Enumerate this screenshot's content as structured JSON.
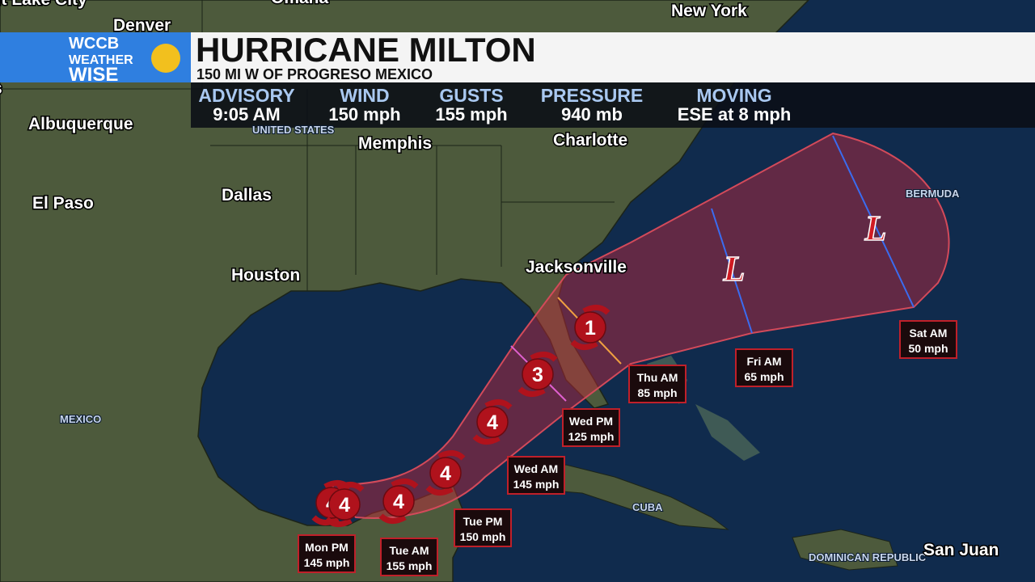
{
  "header": {
    "logo": [
      "WCCB",
      "WEATHER",
      "WISE"
    ],
    "title": "HURRICANE MILTON",
    "subtitle": "150 MI W OF PROGRESO MEXICO"
  },
  "stats": [
    {
      "label": "ADVISORY",
      "value": "9:05 AM"
    },
    {
      "label": "WIND",
      "value": "150 mph"
    },
    {
      "label": "GUSTS",
      "value": "155 mph"
    },
    {
      "label": "PRESSURE",
      "value": "940 mb"
    },
    {
      "label": "MOVING",
      "value": "ESE at 8 mph"
    }
  ],
  "places": [
    "Salt Lake City",
    "Omaha",
    "Denver",
    "New York",
    "Las Vegas",
    "Albuquerque",
    "UNITED STATES",
    "Memphis",
    "Charlotte",
    "El Paso",
    "Dallas",
    "Houston",
    "Jacksonville",
    "BERMUDA",
    "MEXICO",
    "CUBA",
    "DOMINICAN REPUBLIC",
    "San Juan"
  ],
  "track": [
    {
      "category": "4"
    },
    {
      "category": "4"
    },
    {
      "category": "4"
    },
    {
      "category": "4"
    },
    {
      "category": "4"
    },
    {
      "category": "3"
    },
    {
      "category": "1"
    },
    {
      "category": "L"
    },
    {
      "category": "L"
    }
  ],
  "forecast": [
    {
      "time": "Mon PM",
      "wind": "145 mph"
    },
    {
      "time": "Tue AM",
      "wind": "155 mph"
    },
    {
      "time": "Tue PM",
      "wind": "150 mph"
    },
    {
      "time": "Wed AM",
      "wind": "145 mph"
    },
    {
      "time": "Wed PM",
      "wind": "125 mph"
    },
    {
      "time": "Thu AM",
      "wind": "85 mph"
    },
    {
      "time": "Fri AM",
      "wind": "65 mph"
    },
    {
      "time": "Sat AM",
      "wind": "50 mph"
    }
  ]
}
